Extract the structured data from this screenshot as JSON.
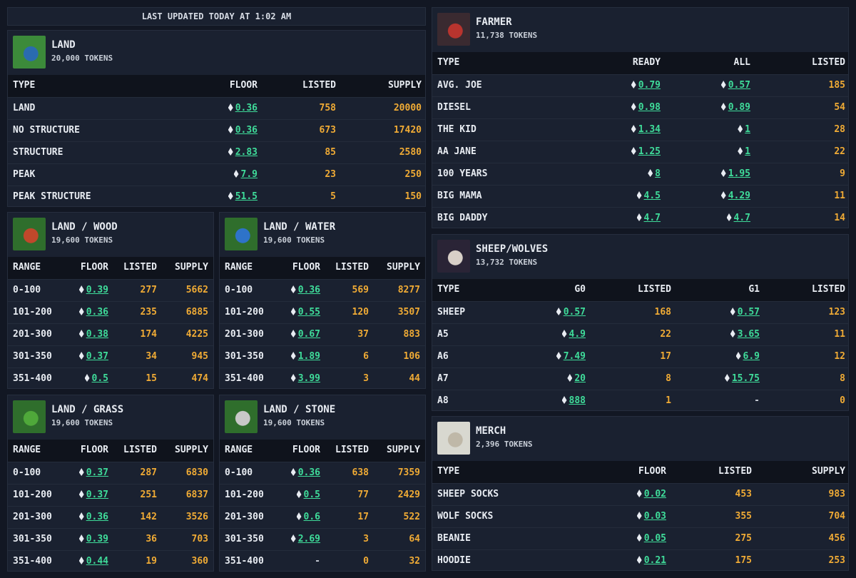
{
  "header": {
    "updated": "LAST UPDATED TODAY AT 1:02 AM"
  },
  "panels": [
    {
      "title": "LAND",
      "subtitle": "20,000 TOKENS",
      "columns": [
        "TYPE",
        "FLOOR",
        "LISTED",
        "SUPPLY"
      ],
      "rows": [
        [
          "LAND",
          "0.36",
          "758",
          "20000"
        ],
        [
          "NO STRUCTURE",
          "0.36",
          "673",
          "17420"
        ],
        [
          "STRUCTURE",
          "2.83",
          "85",
          "2580"
        ],
        [
          "PEAK",
          "7.9",
          "23",
          "250"
        ],
        [
          "PEAK STRUCTURE",
          "51.5",
          "5",
          "150"
        ]
      ]
    },
    {
      "title": "LAND / WOOD",
      "subtitle": "19,600 TOKENS",
      "columns": [
        "RANGE",
        "FLOOR",
        "LISTED",
        "SUPPLY"
      ],
      "rows": [
        [
          "0-100",
          "0.39",
          "277",
          "5662"
        ],
        [
          "101-200",
          "0.36",
          "235",
          "6885"
        ],
        [
          "201-300",
          "0.38",
          "174",
          "4225"
        ],
        [
          "301-350",
          "0.37",
          "34",
          "945"
        ],
        [
          "351-400",
          "0.5",
          "15",
          "474"
        ]
      ]
    },
    {
      "title": "LAND / WATER",
      "subtitle": "19,600 TOKENS",
      "columns": [
        "RANGE",
        "FLOOR",
        "LISTED",
        "SUPPLY"
      ],
      "rows": [
        [
          "0-100",
          "0.36",
          "569",
          "8277"
        ],
        [
          "101-200",
          "0.55",
          "120",
          "3507"
        ],
        [
          "201-300",
          "0.67",
          "37",
          "883"
        ],
        [
          "301-350",
          "1.89",
          "6",
          "106"
        ],
        [
          "351-400",
          "3.99",
          "3",
          "44"
        ]
      ]
    },
    {
      "title": "LAND / GRASS",
      "subtitle": "19,600 TOKENS",
      "columns": [
        "RANGE",
        "FLOOR",
        "LISTED",
        "SUPPLY"
      ],
      "rows": [
        [
          "0-100",
          "0.37",
          "287",
          "6830"
        ],
        [
          "101-200",
          "0.37",
          "251",
          "6837"
        ],
        [
          "201-300",
          "0.36",
          "142",
          "3526"
        ],
        [
          "301-350",
          "0.39",
          "36",
          "703"
        ],
        [
          "351-400",
          "0.44",
          "19",
          "360"
        ]
      ]
    },
    {
      "title": "LAND / STONE",
      "subtitle": "19,600 TOKENS",
      "columns": [
        "RANGE",
        "FLOOR",
        "LISTED",
        "SUPPLY"
      ],
      "rows": [
        [
          "0-100",
          "0.36",
          "638",
          "7359"
        ],
        [
          "101-200",
          "0.5",
          "77",
          "2429"
        ],
        [
          "201-300",
          "0.6",
          "17",
          "522"
        ],
        [
          "301-350",
          "2.69",
          "3",
          "64"
        ],
        [
          "351-400",
          "-",
          "0",
          "32"
        ]
      ]
    },
    {
      "title": "FARMER",
      "subtitle": "11,738 TOKENS",
      "columns": [
        "TYPE",
        "READY",
        "ALL",
        "LISTED"
      ],
      "rows": [
        [
          "AVG. JOE",
          "0.79",
          "0.57",
          "185"
        ],
        [
          "DIESEL",
          "0.98",
          "0.89",
          "54"
        ],
        [
          "THE KID",
          "1.34",
          "1",
          "28"
        ],
        [
          "AA JANE",
          "1.25",
          "1",
          "22"
        ],
        [
          "100 YEARS",
          "8",
          "1.95",
          "9"
        ],
        [
          "BIG MAMA",
          "4.5",
          "4.29",
          "11"
        ],
        [
          "BIG DADDY",
          "4.7",
          "4.7",
          "14"
        ]
      ]
    },
    {
      "title": "SHEEP/WOLVES",
      "subtitle": "13,732 TOKENS",
      "columns": [
        "TYPE",
        "G0",
        "LISTED",
        "G1",
        "LISTED"
      ],
      "rows": [
        [
          "SHEEP",
          "0.57",
          "168",
          "0.57",
          "123"
        ],
        [
          "A5",
          "4.9",
          "22",
          "3.65",
          "11"
        ],
        [
          "A6",
          "7.49",
          "17",
          "6.9",
          "12"
        ],
        [
          "A7",
          "20",
          "8",
          "15.75",
          "8"
        ],
        [
          "A8",
          "888",
          "1",
          "-",
          "0"
        ]
      ]
    },
    {
      "title": "MERCH",
      "subtitle": "2,396 TOKENS",
      "columns": [
        "TYPE",
        "FLOOR",
        "LISTED",
        "SUPPLY"
      ],
      "rows": [
        [
          "SHEEP SOCKS",
          "0.02",
          "453",
          "983"
        ],
        [
          "WOLF SOCKS",
          "0.03",
          "355",
          "704"
        ],
        [
          "BEANIE",
          "0.05",
          "275",
          "456"
        ],
        [
          "HOODIE",
          "0.21",
          "175",
          "253"
        ]
      ]
    }
  ]
}
